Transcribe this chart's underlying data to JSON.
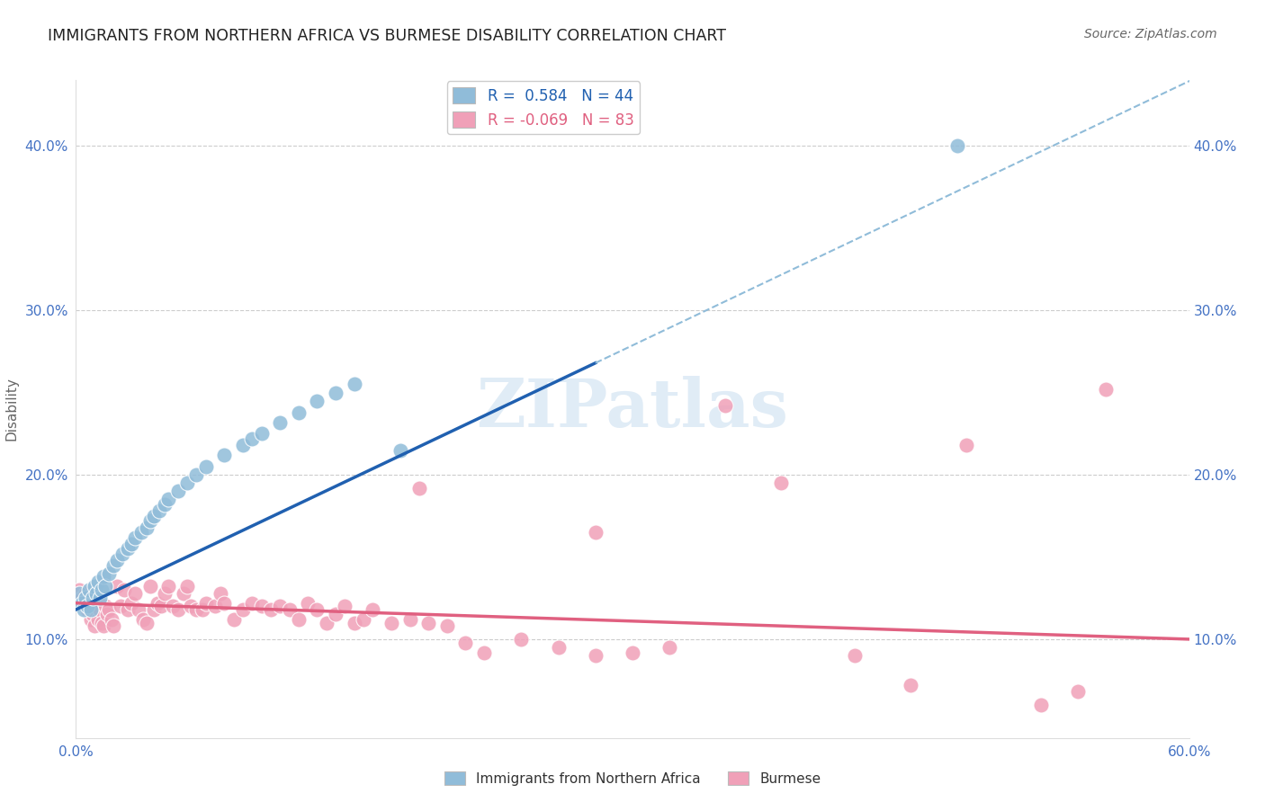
{
  "title": "IMMIGRANTS FROM NORTHERN AFRICA VS BURMESE DISABILITY CORRELATION CHART",
  "source": "Source: ZipAtlas.com",
  "ylabel": "Disability",
  "xlim": [
    0.0,
    0.6
  ],
  "ylim": [
    0.04,
    0.44
  ],
  "yticks": [
    0.1,
    0.2,
    0.3,
    0.4
  ],
  "xticks": [
    0.0,
    0.1,
    0.2,
    0.3,
    0.4,
    0.5,
    0.6
  ],
  "xtick_labels": [
    "0.0%",
    "",
    "",
    "",
    "",
    "",
    "60.0%"
  ],
  "ytick_labels": [
    "10.0%",
    "20.0%",
    "30.0%",
    "40.0%"
  ],
  "R_blue": 0.584,
  "N_blue": 44,
  "R_pink": -0.069,
  "N_pink": 83,
  "blue_color": "#90BCD9",
  "pink_color": "#F0A0B8",
  "blue_line_color": "#2060B0",
  "pink_line_color": "#E06080",
  "dashed_line_color": "#90BCD9",
  "grid_color": "#CCCCCC",
  "title_color": "#222222",
  "axis_label_color": "#4472C4",
  "watermark": "ZIPatlas",
  "blue_line_x0": 0.0,
  "blue_line_y0": 0.118,
  "blue_line_x1": 0.28,
  "blue_line_y1": 0.268,
  "pink_line_x0": 0.0,
  "pink_line_y0": 0.122,
  "pink_line_x1": 0.6,
  "pink_line_y1": 0.1,
  "blue_scatter_x": [
    0.002,
    0.003,
    0.004,
    0.005,
    0.006,
    0.007,
    0.008,
    0.009,
    0.01,
    0.011,
    0.012,
    0.013,
    0.014,
    0.015,
    0.016,
    0.018,
    0.02,
    0.022,
    0.025,
    0.028,
    0.03,
    0.032,
    0.035,
    0.038,
    0.04,
    0.042,
    0.045,
    0.048,
    0.05,
    0.055,
    0.06,
    0.065,
    0.07,
    0.08,
    0.09,
    0.095,
    0.1,
    0.11,
    0.12,
    0.13,
    0.14,
    0.15,
    0.175,
    0.475
  ],
  "blue_scatter_y": [
    0.128,
    0.122,
    0.118,
    0.125,
    0.12,
    0.13,
    0.118,
    0.125,
    0.132,
    0.128,
    0.135,
    0.125,
    0.13,
    0.138,
    0.132,
    0.14,
    0.145,
    0.148,
    0.152,
    0.155,
    0.158,
    0.162,
    0.165,
    0.168,
    0.172,
    0.175,
    0.178,
    0.182,
    0.185,
    0.19,
    0.195,
    0.2,
    0.205,
    0.212,
    0.218,
    0.222,
    0.225,
    0.232,
    0.238,
    0.245,
    0.25,
    0.255,
    0.215,
    0.4
  ],
  "pink_scatter_x": [
    0.002,
    0.003,
    0.004,
    0.005,
    0.006,
    0.007,
    0.008,
    0.009,
    0.01,
    0.01,
    0.011,
    0.012,
    0.013,
    0.014,
    0.015,
    0.016,
    0.017,
    0.018,
    0.019,
    0.02,
    0.022,
    0.024,
    0.026,
    0.028,
    0.03,
    0.032,
    0.034,
    0.036,
    0.038,
    0.04,
    0.042,
    0.044,
    0.046,
    0.048,
    0.05,
    0.052,
    0.055,
    0.058,
    0.06,
    0.062,
    0.065,
    0.068,
    0.07,
    0.075,
    0.078,
    0.08,
    0.085,
    0.09,
    0.095,
    0.1,
    0.105,
    0.11,
    0.115,
    0.12,
    0.125,
    0.13,
    0.135,
    0.14,
    0.145,
    0.15,
    0.155,
    0.16,
    0.17,
    0.18,
    0.19,
    0.2,
    0.21,
    0.22,
    0.24,
    0.26,
    0.28,
    0.3,
    0.32,
    0.35,
    0.38,
    0.42,
    0.45,
    0.48,
    0.52,
    0.54,
    0.555,
    0.28,
    0.185
  ],
  "pink_scatter_y": [
    0.13,
    0.125,
    0.122,
    0.128,
    0.118,
    0.12,
    0.112,
    0.115,
    0.125,
    0.108,
    0.12,
    0.112,
    0.118,
    0.11,
    0.108,
    0.12,
    0.115,
    0.118,
    0.112,
    0.108,
    0.132,
    0.12,
    0.13,
    0.118,
    0.122,
    0.128,
    0.118,
    0.112,
    0.11,
    0.132,
    0.118,
    0.122,
    0.12,
    0.128,
    0.132,
    0.12,
    0.118,
    0.128,
    0.132,
    0.12,
    0.118,
    0.118,
    0.122,
    0.12,
    0.128,
    0.122,
    0.112,
    0.118,
    0.122,
    0.12,
    0.118,
    0.12,
    0.118,
    0.112,
    0.122,
    0.118,
    0.11,
    0.115,
    0.12,
    0.11,
    0.112,
    0.118,
    0.11,
    0.112,
    0.11,
    0.108,
    0.098,
    0.092,
    0.1,
    0.095,
    0.09,
    0.092,
    0.095,
    0.242,
    0.195,
    0.09,
    0.072,
    0.218,
    0.06,
    0.068,
    0.252,
    0.165,
    0.192
  ]
}
